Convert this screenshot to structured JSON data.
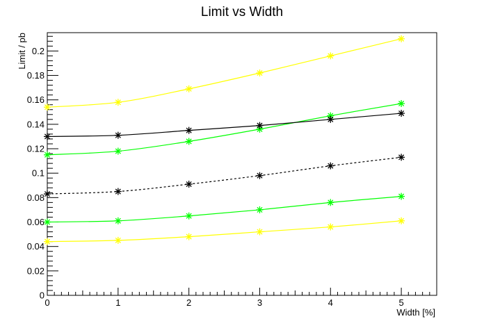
{
  "chart_data": {
    "type": "line",
    "title": "Limit vs Width",
    "xlabel": "Width [%]",
    "ylabel": "Limit / pb",
    "xlim": [
      0,
      5.5
    ],
    "ylim": [
      0,
      0.215
    ],
    "grid": false,
    "legend": "none",
    "x": [
      0,
      1,
      2,
      3,
      4,
      5
    ],
    "x_ticks": [
      "0",
      "1",
      "2",
      "3",
      "4",
      "5"
    ],
    "y_ticks": [
      "0",
      "0.02",
      "0.04",
      "0.06",
      "0.08",
      "0.1",
      "0.12",
      "0.14",
      "0.16",
      "0.18",
      "0.2"
    ],
    "series": [
      {
        "values": [
          0.154,
          0.158,
          0.169,
          0.182,
          0.196,
          0.21
        ],
        "color": "#ffff00",
        "style": "solid"
      },
      {
        "values": [
          0.115,
          0.118,
          0.126,
          0.136,
          0.147,
          0.157
        ],
        "color": "#00ff00",
        "style": "solid"
      },
      {
        "values": [
          0.13,
          0.131,
          0.135,
          0.139,
          0.144,
          0.149
        ],
        "color": "#000000",
        "style": "solid"
      },
      {
        "values": [
          0.083,
          0.085,
          0.091,
          0.098,
          0.106,
          0.113
        ],
        "color": "#000000",
        "style": "dashed"
      },
      {
        "values": [
          0.06,
          0.061,
          0.065,
          0.07,
          0.076,
          0.081
        ],
        "color": "#00ff00",
        "style": "solid"
      },
      {
        "values": [
          0.044,
          0.045,
          0.048,
          0.052,
          0.056,
          0.061
        ],
        "color": "#ffff00",
        "style": "solid"
      }
    ]
  }
}
